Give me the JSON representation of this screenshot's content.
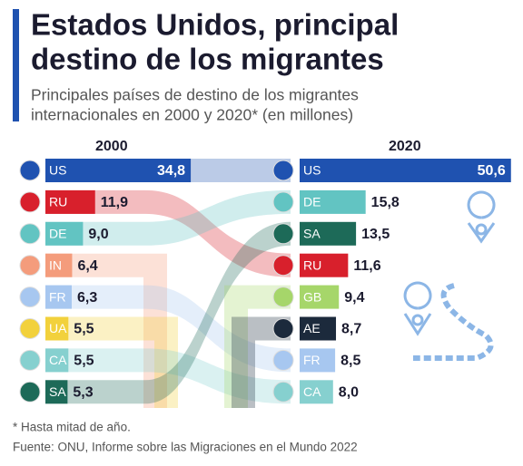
{
  "chart_data": {
    "type": "bump-bar",
    "title": [
      "Estados Unidos, principal",
      "destino de los migrantes"
    ],
    "subtitle": [
      "Principales países de destino de los migrantes",
      "internacionales en 2000 y 2020* (en millones)"
    ],
    "note": "* Hasta mitad de año.",
    "source": "Fuente: ONU, Informe sobre las Migraciones en el Mundo 2022",
    "series": [
      {
        "name": "2000",
        "categories": [
          "US",
          "RU",
          "DE",
          "IN",
          "FR",
          "UA",
          "CA",
          "SA"
        ],
        "values": [
          34.8,
          11.9,
          9.0,
          6.4,
          6.3,
          5.5,
          5.5,
          5.3
        ],
        "value_labels": [
          "34,8",
          "11,9",
          "9,0",
          "6,4",
          "6,3",
          "5,5",
          "5,5",
          "5,3"
        ],
        "colors": [
          "#1f52b0",
          "#d8202c",
          "#62c4c2",
          "#f49c7c",
          "#a7c7f0",
          "#f2d13c",
          "#86d0cf",
          "#1d6a58"
        ]
      },
      {
        "name": "2020",
        "categories": [
          "US",
          "DE",
          "SA",
          "RU",
          "GB",
          "AE",
          "FR",
          "CA"
        ],
        "values": [
          50.6,
          15.8,
          13.5,
          11.6,
          9.4,
          8.7,
          8.5,
          8.0
        ],
        "value_labels": [
          "50,6",
          "15,8",
          "13,5",
          "11,6",
          "9,4",
          "8,7",
          "8,5",
          "8,0"
        ],
        "colors": [
          "#1f52b0",
          "#62c4c2",
          "#1d6a58",
          "#d8202c",
          "#a6d66a",
          "#1c2a3c",
          "#a7c7f0",
          "#86d0cf"
        ]
      }
    ]
  }
}
